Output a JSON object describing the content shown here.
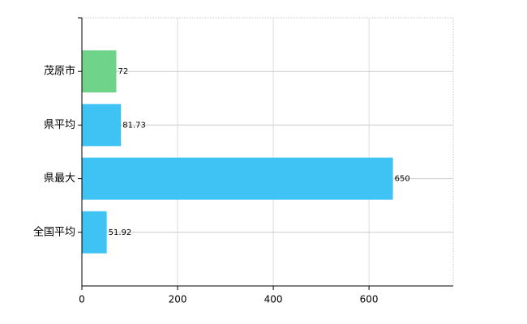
{
  "chart_data": {
    "type": "hbar",
    "categories": [
      "茂原市",
      "県平均",
      "県最大",
      "全国平均"
    ],
    "values": [
      72,
      81.73,
      650,
      51.92
    ],
    "colors": [
      "#6fd48a",
      "#3fc3f4",
      "#3fc3f4",
      "#3fc3f4"
    ],
    "xlim": [
      0,
      776
    ],
    "xticks": [
      0,
      200,
      400,
      600
    ],
    "grid": true
  }
}
